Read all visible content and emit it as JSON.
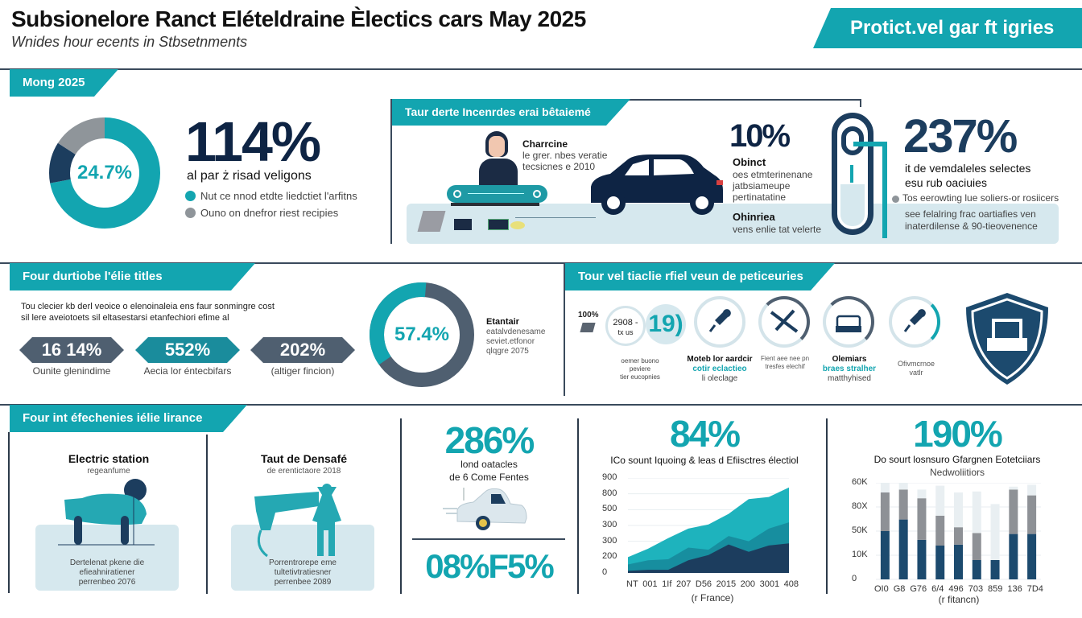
{
  "header": {
    "title": "Subsionelore Ranct Elételdraine Èlectics cars  May 2025",
    "subtitle": "Wnides hour ecents in Stbsetnments",
    "banner": "Protict.vel gar ft igries"
  },
  "colors": {
    "teal": "#13a5b0",
    "navy": "#1c3d5e",
    "dark_navy": "#0e2444",
    "gray": "#8f959a",
    "light_blue": "#d6e8ee",
    "slate": "#4f5f70"
  },
  "section1": {
    "tag": "Mong 2025",
    "donut": {
      "center_label": "24.7%",
      "segments": [
        {
          "name": "teal",
          "value": 72,
          "color": "#13a5b0"
        },
        {
          "name": "navy",
          "value": 12,
          "color": "#1c3d5e"
        },
        {
          "name": "gray",
          "value": 16,
          "color": "#8f959a"
        }
      ]
    },
    "big_stat": "114%",
    "stat_caption": "al par ż risad veligons",
    "legend": [
      {
        "label": "Nut ce nnod etdte liedctiet l'arfitns",
        "color": "#13a5b0"
      },
      {
        "label": "Ouno on dnefror riest recipies",
        "color": "#8f959a"
      }
    ]
  },
  "section2": {
    "tag": "Taur derte Incenrdes erai bêtaiemé",
    "person_title": "Charrcine",
    "person_lines": [
      "le grer. nbes veratie",
      "tecsicnes e 2010"
    ],
    "stat": "10%",
    "stat_title": "Obinct",
    "stat_lines": [
      "oes etmterinenane",
      "jatbsiameupe",
      "pertinatatine"
    ],
    "sub_title": "Ohinriea",
    "sub_line": "vens enlie tat velerte"
  },
  "section3": {
    "stat": "237%",
    "caption_lines": [
      "it de vemdaleles selectes",
      "esu rub oaciuies"
    ],
    "bullet_lines": [
      "Tos eerowting lue soliers-or rosiicers",
      "see felalring frac oartiafies ven",
      "inaterdilense & 90-tieovenence"
    ]
  },
  "section4": {
    "tag": "Four durtiobe l'élie titles",
    "paragraph": [
      "Tou clecier kb derl veoice o elenoinaleia ens faur sonmingre cost",
      "sil lere aveiotoets sil eltasestarsi etanfechiori efime al"
    ],
    "hexes": [
      {
        "value": "16 14%",
        "label": "Ounite glenindime",
        "color": "#4f5f70"
      },
      {
        "value": "552%",
        "label": "Aecia lor éntecbifars",
        "color": "#1a8c9c"
      },
      {
        "value": "202%",
        "label": "(altiger fincion)",
        "color": "#4f5f70"
      }
    ],
    "donut": {
      "center_label": "57.4%",
      "segments": [
        {
          "name": "slate",
          "value": 64,
          "color": "#4f5f70"
        },
        {
          "name": "teal",
          "value": 36,
          "color": "#13a5b0"
        }
      ]
    },
    "donut_title": "Etantair",
    "donut_lines": [
      "eatalvdenesame",
      "seviet.etfonor",
      "qlqgre 2075"
    ]
  },
  "section5": {
    "tag": "Tour vel tiaclie rfiel veun de peticeuries",
    "lead_small": "100%",
    "circle_text_1": "2908 -",
    "circle_text_2": "tx us",
    "big_number": "19)",
    "lead_caption": [
      "oemer buono peviere",
      "tier eucopnies"
    ],
    "icons": [
      {
        "name": "plug-icon",
        "title": "Moteb lor aardcir",
        "teal": "cotir eclactieo",
        "line": "li oleclage"
      },
      {
        "name": "tools-icon",
        "title": "",
        "teal": "",
        "line": "Fient aee nee pn tresfes elechif"
      },
      {
        "name": "car-front-icon",
        "title": "Olemiars",
        "teal": "braes stralher",
        "line": "matthyhised"
      },
      {
        "name": "charger-plug-icon",
        "title": "",
        "teal": "",
        "line": "Ofivmcrnoe vatlr"
      }
    ],
    "shield": "shield-printer-icon"
  },
  "section6": {
    "tag": "Four int éfechenies iélie lirance",
    "card1": {
      "title": "Electric station",
      "sub": "regeanfume",
      "lines": [
        "Dertelenat pkene die",
        "efieahniratiener",
        "perrenbeo 2076"
      ]
    },
    "card2": {
      "title": "Taut de Densafé",
      "sub": "de erentictaore 2018",
      "lines": [
        "Porrentrorepe eme",
        "tultetivtratiesner",
        "perrenbee 2089"
      ]
    },
    "card3": {
      "stat": "286%",
      "lines": [
        "lond oatacles",
        "de 6 Come Fentes"
      ],
      "bottom_stat": "08%F5%"
    }
  },
  "chart_data": [
    {
      "type": "area",
      "title": "84%",
      "subtitle": "ICo sount Iquoing & leas d Efiisctres électiol",
      "xlabel": "(r France)",
      "ylabel": "",
      "categories": [
        "NT",
        "001",
        "1If",
        "207",
        "D56",
        "2015",
        "200",
        "3001",
        "408"
      ],
      "ytick_labels": [
        "0",
        "200",
        "300",
        "300",
        "500",
        "800",
        "900"
      ],
      "ylim": [
        0,
        900
      ],
      "grid": true,
      "series": [
        {
          "name": "light teal",
          "color": "#1eb3bd",
          "values": [
            150,
            230,
            330,
            420,
            460,
            560,
            700,
            720,
            810
          ]
        },
        {
          "name": "mid teal",
          "color": "#178e9f",
          "values": [
            80,
            120,
            130,
            240,
            220,
            350,
            300,
            420,
            480
          ]
        },
        {
          "name": "navy",
          "color": "#1c3d5e",
          "values": [
            20,
            30,
            30,
            120,
            170,
            270,
            200,
            260,
            280
          ]
        }
      ]
    },
    {
      "type": "bar",
      "title": "190%",
      "subtitle": "Do sourt losnsuro Gfargnen Eotetciiars",
      "subtitle2": "Nedwoliitiors",
      "xlabel": "(r fitancn)",
      "categories": [
        "OI0",
        "G8",
        "G76",
        "6/4",
        "496",
        "703",
        "859",
        "136",
        "7D4"
      ],
      "ytick_labels": [
        "0",
        "10K",
        "50K",
        "80X",
        "60K"
      ],
      "grid": true,
      "series": [
        {
          "name": "navy",
          "color": "#1c4a6e",
          "values": [
            50,
            62,
            41,
            35,
            36,
            20,
            20,
            47,
            47
          ]
        },
        {
          "name": "gray",
          "color": "#8e9196",
          "values": [
            40,
            31,
            43,
            31,
            18,
            28,
            0,
            46,
            40
          ]
        },
        {
          "name": "light",
          "color": "#e9eff2",
          "values": [
            10,
            7,
            9,
            31,
            36,
            43,
            58,
            3,
            11
          ]
        }
      ]
    }
  ]
}
